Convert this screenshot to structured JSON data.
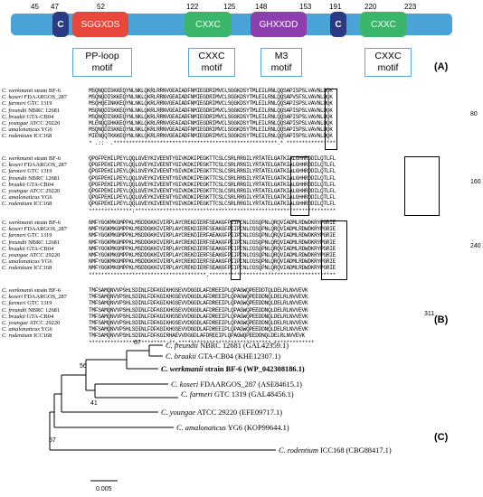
{
  "panel_a": {
    "positions": [
      "45",
      "47",
      "52",
      "122",
      "125",
      "148",
      "153",
      "191",
      "220",
      "223"
    ],
    "domains": [
      "C",
      "SGGXDS",
      "CXXC",
      "GHXXDD",
      "C",
      "CXXC"
    ],
    "motifs": [
      "PP-loop\nmotif",
      "CXXC\nmotif",
      "M3\nmotif",
      "CXXC\nmotif"
    ],
    "label": "(A)"
  },
  "panel_b": {
    "label": "(B)",
    "species": [
      {
        "genus": "C. werkmanii",
        "strain": " strain BF-6"
      },
      {
        "genus": "C. koseri",
        "strain": " FDAARGOS_287"
      },
      {
        "genus": "C. farmeri",
        "strain": " GTC 1319"
      },
      {
        "genus": "C. freundii",
        "strain": " NBRC 12681"
      },
      {
        "genus": "C. braakii",
        "strain": " GTA-CB04"
      },
      {
        "genus": "C. youngae",
        "strain": " ATCC 29220"
      },
      {
        "genus": "C. amalonaticus",
        "strain": " YG6"
      },
      {
        "genus": "C. rodentium",
        "strain": " ICC168"
      }
    ],
    "blocks": [
      {
        "end": "80",
        "seqs": [
          "MSQNQDISKKEQYNLNKLQKRLRRNVGEAIADFNMIEGDRIMVCLSGGKDSYTMLEILRNLQQSAPISPSLVAVNLDQK",
          "MSQNQDISKKEQYNLNKLQKRLRRNVGEAIADFNMIEGDRIMVCLSGGKDSYTMLEILRNLQQSAPVSFSLVAVNLDQK",
          "MSQHQEINKKEQYNLNKLQKRLRRNVGEAIADFNMIEGDRIMVCLSGGKDSYTMLEILRNLQQSAPISPSLVAVNLDQK",
          "MSQNQDISKKEQYNLNKLQKRLRRNVGEAIADFNMIEGDRIMVCLSGGKDSYTMLEILRNLQQSAPISPSLVAVNLDQK",
          "MSQNQDISKKEQYNLNKLQKRLRRNVGEAIADFNMIEGDRIMVCLSGGKDSYTMLEILRNLQQSAPISPSLVAVNLDQK",
          "MLENQQIHKKEQYNLNKLQKRLRRNVGEAIADFNMIEGDRIMVCLSGGKDSYTMLEILRNLQQSAPISPSLVAVNLDQK",
          "MSQNQDISKKEQYNLNKLQKRLRRNVGEAIADFNMIEGDRIMVCLSGGKDSYTMLEILRNLQQSAPISPSLVAVNLDQK",
          "MIENQQTKKKEQYNLNKLQKRLRRNVGEAIADFNMIEGDRIMVCLSGGKDSYTMLEILRNLQQSAPISPSLVAVNLDQK"
        ],
        "cons": "* .::  .*****************************************************.* ****************"
      },
      {
        "end": "160",
        "seqs": [
          "QPGFPEHILPEYLQQLGVEYKIVEENTYGIVKDKIPEGKTTCSLCSRLRRGILYRTATELGATKIALGHHRDDILQTLFL",
          "QPGFPEHILPEYLQQLGVEYKIVEENTYGIVKDKIPEGKTTCSLCSRLRRGILYRTATELGATKIALGHHRDDILQTLFL",
          "QPGFPEHILPEYLQKLGVEYKIVEENTYGIVKDKIPEGKTTCSLCSRLRRGILYRTATELGATKIALGHHRDDILQTLFL",
          "QPGFPEHILPEYLQQLGVEYKIVEENTYGIVKDKIPEGKTTCSLCSRLRRGILYRTATELGATKIALGHHRDDILQTLFL",
          "QPGFPEHILPEYLQQLGVEYKIVEENTYGIVKDKIPEGKTTCSLCSRLRRGILYRTATELGATKIALGHHRDDILQTLFL",
          "QPGFPEHILPEYLQQLGVEYKIVEENTYGIVKDKIPEGKTTCSLCSRLRRGILYRTATELGATKIALGHHRDDILQTLFL",
          "QPGFPEHILPEYLQQLGVEYKIVEENTYGIVKDKIPEGKTTCSLCSRLRRGILYRTATELGATKIALGHHRDDILQTLFL",
          "QPGFPEHILPEYLQQLGVEYKIVEENTYGIVKDKIPEGKTTCSLCSRLRRGILYRTATELGATKIALGHHRDDILQTLFL"
        ],
        "cons": "**************:*****************************************************************"
      },
      {
        "end": "240",
        "seqs": [
          "NMFYGGKMKGMPPKLMSDDGKHIVIRPLAYCREKDIERFSEAKGFPIIPCNLCGSQPNLQRQVIADMLRDWDKRYPGRIE",
          "NMFYGGKMKGMPPKLMSDDGKHIVIRPLAYCREKDIERFSEAKGFPIIPCNLCGSQPNLQRQVIADMLRDWDKRYPGRIE",
          "NMFYGGKMKGMPPKLMSDDGKHIVIRPLAYCREKDIERFAEAKGFPIIPCNLCGSQPNLQRQVIADMLRDWDKRYPGRIE",
          "NMFYGGKMKGMPPKLMSDDGKHIVIRPLAYCREKDIERFSEAKGFPIIPCNLCGSQPNLQRQVIADMLRDWDKRYPGRIE",
          "NMFYGGKMKGMPPKLMSDDGKHIVIRPLAYCREKDIERFSEAKGFPIIPCNLCGSQPNLQRQVIADMLRDWDKRYPGRIE",
          "NMFYGGKMKGMPPKLMSDDGKHIVIRPLAYCREKDIERFSEAKGFPIIPCNLCGSQPNLQRQVIADMLRDWDKRYPGRIE",
          "NMFYGGKMKGMPPKLMSDDGKHIVIRPLAYCREKDIERFSEAKGFPIIPCNLCGSQPNLQRQVIADMLRDWDKRYPGRIE",
          "NMFYGGKMKGMPPKLMSDDGKHIVIRPLAYCREKDIERFSEAKGFPIIPCNLCGSQPNLQRQVIADMLRDWDKRYPGRIE"
        ],
        "cons": "**************************************.*****************************************"
      },
      {
        "end": "311",
        "seqs": [
          "TMFSAMQNVVPSHLSDINLFDFKGIKHGSEVVDGGDLAFDREEIPLQPAGWQPEEDDTQLDELRLNVVEVK",
          "TMFSAMQNVVPSHLSDINLFDFKGIKHGSEVVDGGDLAFDREEIPLQPAGWQPEEDDNQLDELRLNVVEVK",
          "TMFSAMQNVVPSHLSDINLFDFKGIKHGSEVVDGGDLAFDREEIPLQPAGWQPEEDDNQLDELRLNVVEVK",
          "TMFSAMQNVVPSHLSDINLFDFKGIKHGSEVVDGGDLAFDREEIPLQPAGWQPEEDDNQLDELRLNVVEVK",
          "TMFSAMQNVVPSHLSDINLFDFKGIKHGSEVVDGGDLAFDREEIPLQPAGWQPEEDDNQLDELRLNVVEVK",
          "TMFSAMQNVVPSHLSDINLFDFKGIKHGSEVVDGGDLAFDREEIPLQPAGWQPEEDDNQLDELRLNVVEVK",
          "TMFSAMQNVVPSHLSDINLFDFKGIKHGSEVVDGGDLAFDREEIPLQPAGWQPEEDDNQLDELRLNVVEVK",
          "TMFSAMQNVVPSHLSDINLFDFKGIRHAEVVDGGDLAFDREEIPLQPAGWQPEEDDNQLDELRLNVVEVK "
        ],
        "cons": "*************************:**.******************************.*************"
      }
    ]
  },
  "panel_c": {
    "label": "(C)",
    "leaves": [
      {
        "genus": "C. freundii",
        "rest": " NBRC 12681 (GAL42359.1)",
        "bold": false
      },
      {
        "genus": "C. braakii",
        "rest": " GTA-CB04 (KHE12307.1)",
        "bold": false
      },
      {
        "genus": "C. werkmanii",
        "rest": " strain BF-6 (WP_042308186.1)",
        "bold": true
      },
      {
        "genus": "C. koseri",
        "rest": " FDAARGOS_287 (ASE84615.1)",
        "bold": false
      },
      {
        "genus": "C. farmeri",
        "rest": " GTC 1319 (GAL48456.1)",
        "bold": false
      },
      {
        "genus": "C. youngae",
        "rest": " ATCC 29220 (EFE09717.1)",
        "bold": false
      },
      {
        "genus": "C. amalonaticus",
        "rest": " YG6 (KOP99644.1)",
        "bold": false
      },
      {
        "genus": "C. rodentium",
        "rest": " ICC168 (CBG88417.1)",
        "bold": false
      }
    ],
    "bootstrap": [
      "67",
      "56",
      "41",
      "57"
    ],
    "scale": "0.005"
  }
}
